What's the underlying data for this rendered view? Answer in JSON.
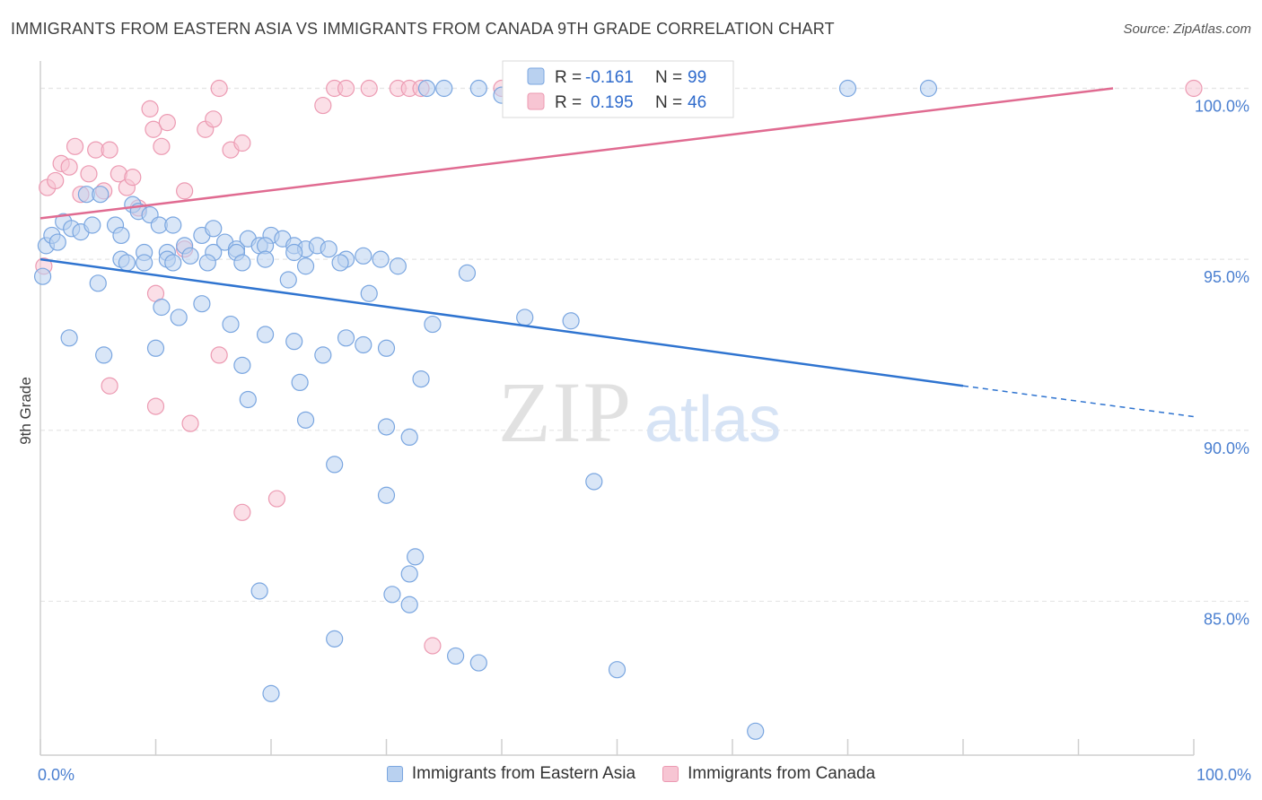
{
  "header": {
    "title": "IMMIGRANTS FROM EASTERN ASIA VS IMMIGRANTS FROM CANADA 9TH GRADE CORRELATION CHART",
    "source": "Source: ZipAtlas.com"
  },
  "watermark": {
    "zip": "ZIP",
    "atlas": "atlas"
  },
  "legend_top": [
    {
      "r_label": "R =",
      "r_value": "-0.161",
      "n_label": "N =",
      "n_value": "99"
    },
    {
      "r_label": "R =",
      "r_value": "0.195",
      "n_label": "N =",
      "n_value": "46"
    }
  ],
  "legend_bottom": [
    {
      "label": "Immigrants from Eastern Asia"
    },
    {
      "label": "Immigrants from Canada"
    }
  ],
  "colors": {
    "series1_fill": "#b9d1f0",
    "series1_stroke": "#7aa6e0",
    "series1_line": "#2f74d0",
    "series2_fill": "#f7c5d3",
    "series2_stroke": "#ec9ab2",
    "series2_line": "#e06b91",
    "tick_text": "#4a7fd0",
    "grid": "#e6e6e6"
  },
  "chart_data": {
    "type": "scatter",
    "title": "IMMIGRANTS FROM EASTERN ASIA VS IMMIGRANTS FROM CANADA 9TH GRADE CORRELATION CHART",
    "xlabel": "",
    "ylabel": "9th Grade",
    "xlim": [
      0,
      100
    ],
    "ylim": [
      80.5,
      100.8
    ],
    "x_tick_labels": [
      "0.0%",
      "100.0%"
    ],
    "y_ticks": [
      85,
      90,
      95,
      100
    ],
    "y_tick_labels": [
      "85.0%",
      "90.0%",
      "95.0%",
      "100.0%"
    ],
    "grid": "horizontal dashed",
    "legend": "top-center",
    "series": [
      {
        "name": "Immigrants from Eastern Asia",
        "R": -0.161,
        "N": 99,
        "trend": {
          "x0": 0,
          "y0": 95.0,
          "x1": 80,
          "y1": 91.3,
          "dashed_to_x": 100,
          "dashed_to_y": 90.4
        },
        "points": [
          [
            0.2,
            94.5
          ],
          [
            0.5,
            95.4
          ],
          [
            1.0,
            95.7
          ],
          [
            1.5,
            95.5
          ],
          [
            2.0,
            96.1
          ],
          [
            2.7,
            95.9
          ],
          [
            3.5,
            95.8
          ],
          [
            4.5,
            96.0
          ],
          [
            4.0,
            96.9
          ],
          [
            5.2,
            96.9
          ],
          [
            6.5,
            96.0
          ],
          [
            7.0,
            95.7
          ],
          [
            8.0,
            96.6
          ],
          [
            8.5,
            96.4
          ],
          [
            9.5,
            96.3
          ],
          [
            10.3,
            96.0
          ],
          [
            11.5,
            96.0
          ],
          [
            12.5,
            95.4
          ],
          [
            11.0,
            95.2
          ],
          [
            14.0,
            95.7
          ],
          [
            15.0,
            95.9
          ],
          [
            16.0,
            95.5
          ],
          [
            17.0,
            95.3
          ],
          [
            18.0,
            95.6
          ],
          [
            19.0,
            95.4
          ],
          [
            20.0,
            95.7
          ],
          [
            21.0,
            95.6
          ],
          [
            22.0,
            95.4
          ],
          [
            23.0,
            95.3
          ],
          [
            24.0,
            95.4
          ],
          [
            7.0,
            95.0
          ],
          [
            9.0,
            95.2
          ],
          [
            11.0,
            95.0
          ],
          [
            13.0,
            95.1
          ],
          [
            15.0,
            95.2
          ],
          [
            17.0,
            95.2
          ],
          [
            19.5,
            95.4
          ],
          [
            22.0,
            95.2
          ],
          [
            25.0,
            95.3
          ],
          [
            26.5,
            95.0
          ],
          [
            28.0,
            95.1
          ],
          [
            29.5,
            95.0
          ],
          [
            5.0,
            94.3
          ],
          [
            7.5,
            94.9
          ],
          [
            9.0,
            94.9
          ],
          [
            11.5,
            94.9
          ],
          [
            14.5,
            94.9
          ],
          [
            17.5,
            94.9
          ],
          [
            19.5,
            95.0
          ],
          [
            21.5,
            94.4
          ],
          [
            23.0,
            94.8
          ],
          [
            26.0,
            94.9
          ],
          [
            28.5,
            94.0
          ],
          [
            31.0,
            94.8
          ],
          [
            37.0,
            94.6
          ],
          [
            10.5,
            93.6
          ],
          [
            12.0,
            93.3
          ],
          [
            14.0,
            93.7
          ],
          [
            16.5,
            93.1
          ],
          [
            19.5,
            92.8
          ],
          [
            22.0,
            92.6
          ],
          [
            24.5,
            92.2
          ],
          [
            26.5,
            92.7
          ],
          [
            28.0,
            92.5
          ],
          [
            30.0,
            92.4
          ],
          [
            42.0,
            93.3
          ],
          [
            46.0,
            93.2
          ],
          [
            2.5,
            92.7
          ],
          [
            5.5,
            92.2
          ],
          [
            10.0,
            92.4
          ],
          [
            17.5,
            91.9
          ],
          [
            22.5,
            91.4
          ],
          [
            33.0,
            91.5
          ],
          [
            34.0,
            93.1
          ],
          [
            18.0,
            90.9
          ],
          [
            23.0,
            90.3
          ],
          [
            30.0,
            90.1
          ],
          [
            32.0,
            89.8
          ],
          [
            25.5,
            89.0
          ],
          [
            30.0,
            88.1
          ],
          [
            48.0,
            88.5
          ],
          [
            32.5,
            86.3
          ],
          [
            32.0,
            85.8
          ],
          [
            19.0,
            85.3
          ],
          [
            30.5,
            85.2
          ],
          [
            32.0,
            84.9
          ],
          [
            25.5,
            83.9
          ],
          [
            36.0,
            83.4
          ],
          [
            38.0,
            83.2
          ],
          [
            50.0,
            83.0
          ],
          [
            20.0,
            82.3
          ],
          [
            62.0,
            81.2
          ],
          [
            33.5,
            100.0
          ],
          [
            35.0,
            100.0
          ],
          [
            38.0,
            100.0
          ],
          [
            40.0,
            99.8
          ],
          [
            55.0,
            100.0
          ],
          [
            70.0,
            100.0
          ],
          [
            77.0,
            100.0
          ]
        ]
      },
      {
        "name": "Immigrants from Canada",
        "R": 0.195,
        "N": 46,
        "trend": {
          "x0": 0,
          "y0": 96.2,
          "x1": 93,
          "y1": 100.0
        },
        "points": [
          [
            0.3,
            94.8
          ],
          [
            0.6,
            97.1
          ],
          [
            1.3,
            97.3
          ],
          [
            1.8,
            97.8
          ],
          [
            2.5,
            97.7
          ],
          [
            3.0,
            98.3
          ],
          [
            3.5,
            96.9
          ],
          [
            4.2,
            97.5
          ],
          [
            4.8,
            98.2
          ],
          [
            5.5,
            97.0
          ],
          [
            6.0,
            98.2
          ],
          [
            6.8,
            97.5
          ],
          [
            7.5,
            97.1
          ],
          [
            8.0,
            97.4
          ],
          [
            8.5,
            96.5
          ],
          [
            9.5,
            99.4
          ],
          [
            9.8,
            98.8
          ],
          [
            10.5,
            98.3
          ],
          [
            11.0,
            99.0
          ],
          [
            12.5,
            97.0
          ],
          [
            14.3,
            98.8
          ],
          [
            15.0,
            99.1
          ],
          [
            15.5,
            100.0
          ],
          [
            16.5,
            98.2
          ],
          [
            17.5,
            98.4
          ],
          [
            24.5,
            99.5
          ],
          [
            25.5,
            100.0
          ],
          [
            26.5,
            100.0
          ],
          [
            28.5,
            100.0
          ],
          [
            31.0,
            100.0
          ],
          [
            32.0,
            100.0
          ],
          [
            33.0,
            100.0
          ],
          [
            40.0,
            100.0
          ],
          [
            44.0,
            100.0
          ],
          [
            48.0,
            100.0
          ],
          [
            50.5,
            100.0
          ],
          [
            100.0,
            100.0
          ],
          [
            10.0,
            94.0
          ],
          [
            12.5,
            95.3
          ],
          [
            15.5,
            92.2
          ],
          [
            6.0,
            91.3
          ],
          [
            10.0,
            90.7
          ],
          [
            13.0,
            90.2
          ],
          [
            20.5,
            88.0
          ],
          [
            17.5,
            87.6
          ],
          [
            34.0,
            83.7
          ]
        ]
      }
    ]
  }
}
